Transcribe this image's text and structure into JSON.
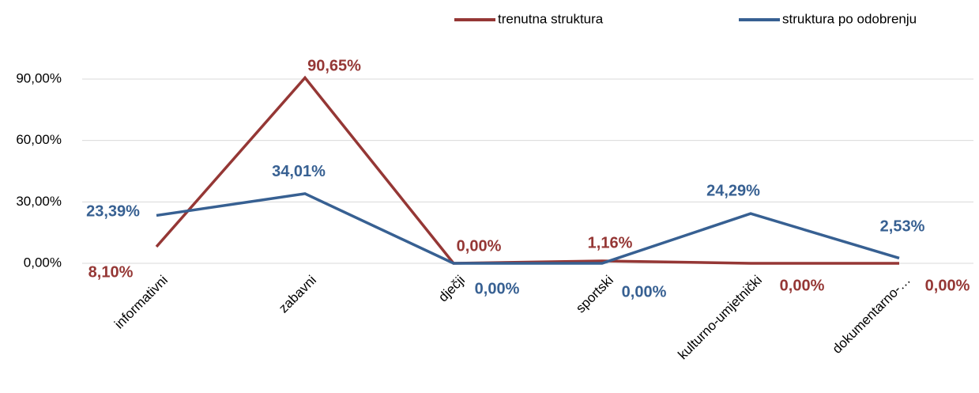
{
  "chart_data": {
    "type": "line",
    "categories": [
      "informativni",
      "zabavni",
      "dječji",
      "sportski",
      "kulturno-umjetnički",
      "dokumentarno-…"
    ],
    "series": [
      {
        "name": "trenutna struktura",
        "color": "#953735",
        "values": [
          8.1,
          90.65,
          0.0,
          1.16,
          0.0,
          0.0
        ],
        "value_labels": [
          "8,10%",
          "90,65%",
          "0,00%",
          "1,16%",
          "0,00%",
          "0,00%"
        ]
      },
      {
        "name": "struktura po odobrenju",
        "color": "#376092",
        "values": [
          23.39,
          34.01,
          0.0,
          0.0,
          24.29,
          2.53
        ],
        "value_labels": [
          "23,39%",
          "34,01%",
          "0,00%",
          "0,00%",
          "24,29%",
          "2,53%"
        ]
      }
    ],
    "ylim": [
      0,
      90
    ],
    "yticks": [
      {
        "value": 0,
        "label": "0,00%"
      },
      {
        "value": 30,
        "label": "30,00%"
      },
      {
        "value": 60,
        "label": "60,00%"
      },
      {
        "value": 90,
        "label": "90,00%"
      }
    ],
    "grid": true
  }
}
